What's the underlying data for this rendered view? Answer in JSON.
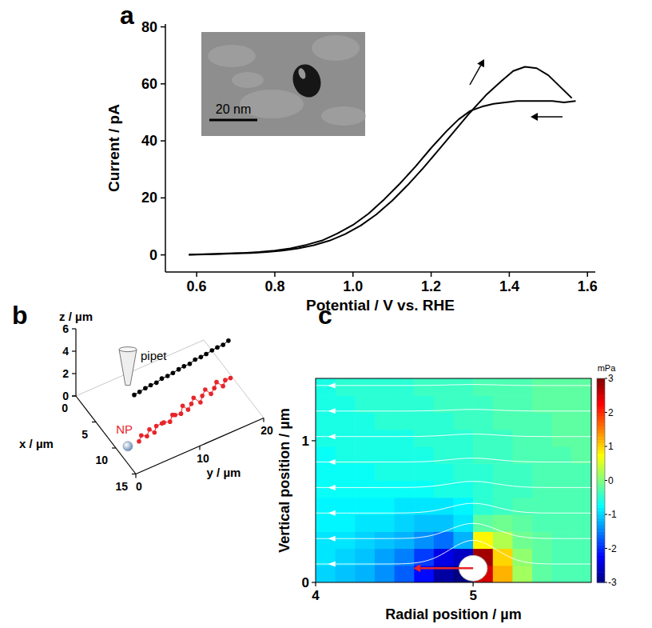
{
  "chart_data": [
    {
      "panel": "a",
      "type": "line",
      "x_label": "Potential / V vs. RHE",
      "y_label": "Current / pA",
      "xlim": [
        0.52,
        1.62
      ],
      "ylim": [
        -6,
        81
      ],
      "xticks": [
        0.6,
        0.8,
        {
          "value": 1,
          "label": "1.0"
        },
        1.2,
        1.4,
        1.6
      ],
      "yticks": [
        0,
        20,
        40,
        60,
        80
      ],
      "series": [
        {
          "color": "#000000",
          "line_style": "solid",
          "x": [
            0.58,
            0.62,
            0.66,
            0.7,
            0.74,
            0.78,
            0.82,
            0.86,
            0.9,
            0.94,
            0.98,
            1.02,
            1.06,
            1.1,
            1.14,
            1.18,
            1.22,
            1.26,
            1.3,
            1.34,
            1.38,
            1.41,
            1.44,
            1.47,
            1.5,
            1.53,
            1.56
          ],
          "values": [
            0,
            0.2,
            0.3,
            0.5,
            0.7,
            1.0,
            1.5,
            2.3,
            3.4,
            5,
            7.3,
            10.3,
            14.2,
            19,
            24.5,
            30.5,
            37,
            43.5,
            50,
            56,
            61,
            64.5,
            66,
            65.5,
            63,
            59,
            55
          ]
        },
        {
          "color": "#000000",
          "line_style": "solid",
          "x": [
            1.57,
            1.54,
            1.51,
            1.48,
            1.45,
            1.42,
            1.39,
            1.36,
            1.33,
            1.3,
            1.27,
            1.24,
            1.2,
            1.16,
            1.12,
            1.08,
            1.04,
            1.0,
            0.96,
            0.92,
            0.88,
            0.84,
            0.8,
            0.76,
            0.72,
            0.68,
            0.64,
            0.6,
            0.58
          ],
          "values": [
            54,
            53.5,
            54,
            54,
            54,
            54,
            53.5,
            53,
            52,
            50.5,
            47.5,
            43.5,
            37.5,
            31,
            25,
            19.5,
            14.5,
            10.5,
            7.5,
            5,
            3.5,
            2.3,
            1.5,
            1,
            0.7,
            0.5,
            0.3,
            0.2,
            0.1
          ]
        }
      ],
      "inset": {
        "scale_bar": "20 nm"
      }
    },
    {
      "panel": "b",
      "type": "scatter3d",
      "x_label": "x / µm",
      "y_label": "y / µm",
      "z_label": "z / µm",
      "xlim": [
        0,
        15
      ],
      "ylim": [
        0,
        20
      ],
      "zlim": [
        0,
        6
      ],
      "xticks": [
        0,
        5,
        10,
        15
      ],
      "yticks": [
        0,
        10,
        20
      ],
      "zticks": [
        0,
        2,
        4,
        6
      ],
      "series": [
        {
          "color": "#000000",
          "marker": "circle",
          "line_style": "solid",
          "x": [
            9.0,
            8.9,
            8.9,
            8.8,
            8.8,
            8.7,
            8.7,
            8.6,
            8.6,
            8.5,
            8.5,
            8.4,
            8.4,
            8.3,
            8.3,
            8.2,
            8.2,
            8.1
          ],
          "y": [
            3.5,
            4.4,
            5.3,
            6.2,
            7.1,
            8.0,
            8.9,
            9.8,
            10.7,
            11.6,
            12.5,
            13.4,
            14.3,
            15.2,
            16.1,
            17.0,
            17.9,
            18.8
          ],
          "z": [
            3.4,
            3.4,
            3.5,
            3.5,
            3.5,
            3.6,
            3.6,
            3.6,
            3.7,
            3.7,
            3.7,
            3.8,
            3.8,
            3.8,
            3.9,
            3.9,
            3.9,
            4.0
          ]
        },
        {
          "color": "#e8252a",
          "marker": "circle",
          "line_style": "solid",
          "x": [
            11.0,
            10.6,
            10.9,
            10.4,
            10.7,
            10.2,
            10.5,
            10.0,
            10.6,
            10.1,
            9.8,
            10.3,
            9.6,
            10.0,
            9.7,
            9.3,
            9.9,
            9.4,
            9.0,
            9.5,
            9.2,
            8.8,
            9.3,
            8.9,
            9.1
          ],
          "y": [
            3.0,
            3.6,
            4.3,
            5.0,
            5.6,
            6.2,
            6.9,
            7.5,
            8.1,
            8.8,
            9.4,
            10.0,
            10.7,
            11.3,
            12.0,
            12.6,
            13.3,
            13.9,
            14.6,
            15.2,
            15.9,
            16.5,
            17.2,
            17.8,
            18.5
          ],
          "z": [
            0.3,
            0.5,
            0.4,
            0.6,
            0.3,
            0.5,
            0.7,
            0.4,
            0.6,
            0.8,
            0.5,
            0.7,
            0.9,
            0.6,
            0.8,
            1.0,
            0.7,
            0.9,
            1.1,
            0.8,
            1.0,
            1.2,
            0.9,
            1.1,
            1.2
          ]
        }
      ],
      "annotations": [
        {
          "text": "pipet"
        },
        {
          "text": "NP"
        }
      ]
    },
    {
      "panel": "c",
      "type": "heatmap",
      "x_label": "Radial position / µm",
      "y_label": "Vertical position / µm",
      "xlim": [
        4,
        5.75
      ],
      "ylim": [
        0,
        1.44
      ],
      "xticks": [
        4,
        5
      ],
      "yticks": [
        0,
        1
      ],
      "x_bins": [
        4,
        4.125,
        4.25,
        4.375,
        4.5,
        4.625,
        4.75,
        4.875,
        5,
        5.125,
        5.25,
        5.375,
        5.5,
        5.625,
        5.75
      ],
      "y_bins": [
        0,
        0.12,
        0.24,
        0.36,
        0.48,
        0.6,
        0.72,
        0.84,
        0.96,
        1.08,
        1.2,
        1.32,
        1.44
      ],
      "cells": [
        [
          -1.0,
          -1.1,
          -1.2,
          -1.4,
          -1.7,
          -2.2,
          -2.8,
          -3.0,
          2.5,
          1.2,
          0.2,
          -0.2,
          -0.3,
          -0.3
        ],
        [
          -0.9,
          -1.0,
          -1.1,
          -1.3,
          -1.5,
          -1.9,
          -2.4,
          -2.6,
          2.8,
          1.0,
          0.1,
          -0.2,
          -0.3,
          -0.3
        ],
        [
          -0.9,
          -0.9,
          -1.0,
          -1.1,
          -1.2,
          -1.4,
          -1.6,
          -1.2,
          0.8,
          0.3,
          -0.1,
          -0.2,
          -0.3,
          -0.3
        ],
        [
          -0.8,
          -0.8,
          -0.9,
          -0.9,
          -1.0,
          -1.1,
          -1.1,
          -0.9,
          -0.2,
          -0.1,
          -0.2,
          -0.3,
          -0.3,
          -0.3
        ],
        [
          -0.8,
          -0.8,
          -0.8,
          -0.8,
          -0.9,
          -0.9,
          -0.9,
          -0.8,
          -0.5,
          -0.4,
          -0.3,
          -0.3,
          -0.3,
          -0.3
        ],
        [
          -0.7,
          -0.7,
          -0.7,
          -0.7,
          -0.7,
          -0.7,
          -0.6,
          -0.6,
          -0.5,
          -0.4,
          -0.4,
          -0.3,
          -0.3,
          -0.3
        ],
        [
          -0.7,
          -0.7,
          -0.7,
          -0.6,
          -0.6,
          -0.6,
          -0.6,
          -0.5,
          -0.5,
          -0.4,
          -0.4,
          -0.3,
          -0.3,
          -0.3
        ],
        [
          -0.7,
          -0.6,
          -0.6,
          -0.6,
          -0.6,
          -0.6,
          -0.5,
          -0.5,
          -0.4,
          -0.4,
          -0.3,
          -0.3,
          -0.3,
          -0.2
        ],
        [
          -0.6,
          -0.6,
          -0.6,
          -0.6,
          -0.6,
          -0.5,
          -0.5,
          -0.5,
          -0.4,
          -0.4,
          -0.3,
          -0.3,
          -0.2,
          -0.2
        ],
        [
          -0.6,
          -0.6,
          -0.6,
          -0.5,
          -0.5,
          -0.5,
          -0.5,
          -0.4,
          -0.4,
          -0.3,
          -0.3,
          -0.3,
          -0.2,
          -0.2
        ],
        [
          -0.6,
          -0.6,
          -0.5,
          -0.5,
          -0.5,
          -0.5,
          -0.4,
          -0.4,
          -0.4,
          -0.3,
          -0.3,
          -0.2,
          -0.2,
          -0.2
        ],
        [
          -0.6,
          -0.5,
          -0.5,
          -0.5,
          -0.5,
          -0.4,
          -0.4,
          -0.4,
          -0.3,
          -0.3,
          -0.3,
          -0.2,
          -0.2,
          -0.2
        ]
      ],
      "colorbar": {
        "label": "mPa",
        "range": [
          -3,
          3
        ],
        "ticks": [
          3,
          2,
          1,
          0,
          -1,
          -2,
          -3
        ]
      },
      "particle": {
        "x": 5,
        "y": 0.1,
        "radius": 0.09
      },
      "arrow": {
        "x_start": 5,
        "x_end": 4.62,
        "y": 0.1,
        "color": "#e8252a"
      }
    }
  ]
}
